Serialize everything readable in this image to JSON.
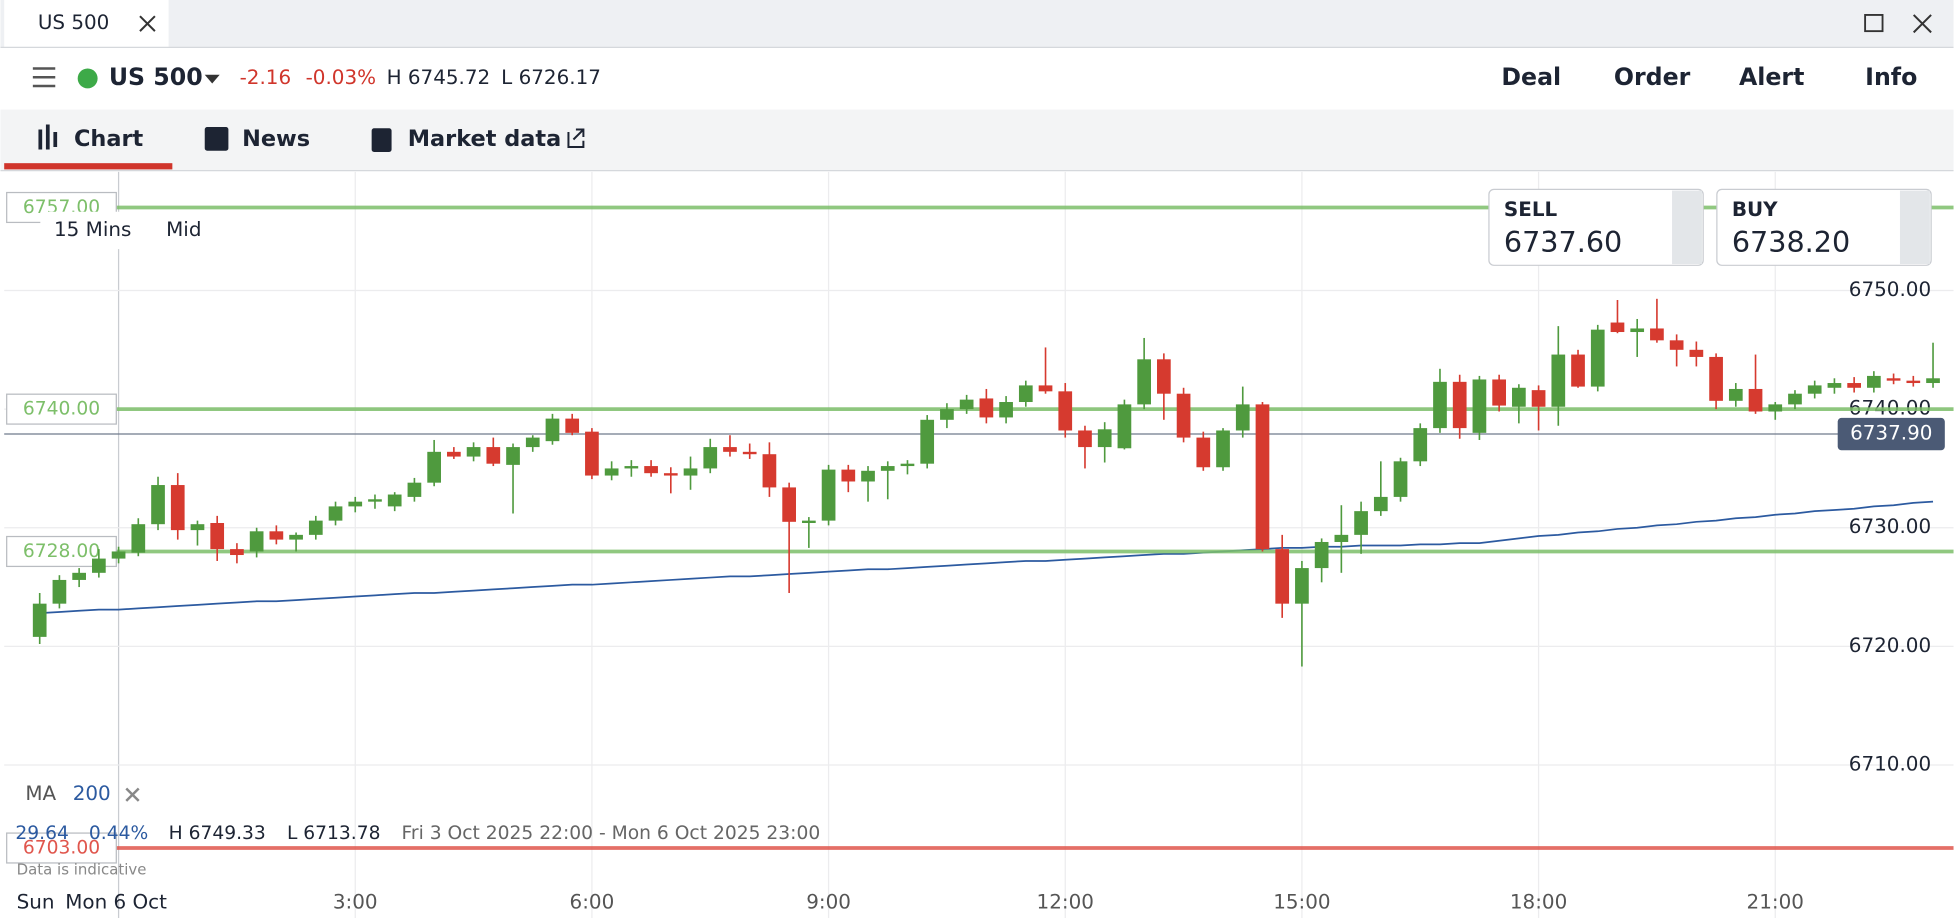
{
  "tab": {
    "title": "US 500"
  },
  "toolbar": {
    "instrument": "US 500",
    "change": "-2.16",
    "change_pct": "-0.03%",
    "high": "H 6745.72",
    "low": "L 6726.17",
    "actions": [
      "Deal",
      "Order",
      "Alert",
      "Info"
    ]
  },
  "nav": [
    "Chart",
    "News",
    "Market data"
  ],
  "chart_data": {
    "type": "candlestick",
    "interval": "15 Mins",
    "price_type": "Mid",
    "sell": {
      "label": "SELL",
      "price": "6737.60"
    },
    "buy": {
      "label": "BUY",
      "price": "6738.20"
    },
    "up_color": "#4f9a3e",
    "down_color": "#d63a2f",
    "xlim": [
      -1.45,
      23.26
    ],
    "ylim": [
      6697.1,
      6760
    ],
    "xticks": [
      {
        "value": 0,
        "label": "Mon 6 Oct"
      },
      {
        "value": 3,
        "label": "3:00"
      },
      {
        "value": 6,
        "label": "6:00"
      },
      {
        "value": 9,
        "label": "9:00"
      },
      {
        "value": 12,
        "label": "12:00"
      },
      {
        "value": 15,
        "label": "15:00"
      },
      {
        "value": 18,
        "label": "18:00"
      },
      {
        "value": 21,
        "label": "21:00"
      }
    ],
    "x_prefix": "Sun",
    "yticks": [
      {
        "value": 6710,
        "label": "6710.00"
      },
      {
        "value": 6720,
        "label": "6720.00"
      },
      {
        "value": 6730,
        "label": "6730.00"
      },
      {
        "value": 6740,
        "label": "6740.00"
      },
      {
        "value": 6750,
        "label": "6750.00"
      }
    ],
    "levels": [
      {
        "value": 6757,
        "label": "6757.00",
        "color": "#7dbf6a"
      },
      {
        "value": 6740,
        "label": "6740.00",
        "color": "#7dbf6a"
      },
      {
        "value": 6728,
        "label": "6728.00",
        "color": "#7dbf6a"
      },
      {
        "value": 6703,
        "label": "6703.00",
        "color": "#e0564d"
      }
    ],
    "current_price": {
      "value": 6737.9,
      "label": "6737.90"
    },
    "candles": [
      [
        -1,
        6720.8,
        6724.5,
        6720.2,
        6723.6
      ],
      [
        -0.75,
        6723.6,
        6726,
        6723.2,
        6725.6
      ],
      [
        -0.5,
        6725.6,
        6726.6,
        6725,
        6726.2
      ],
      [
        -0.25,
        6726.2,
        6728.2,
        6725.8,
        6727.4
      ],
      [
        0,
        6727.4,
        6728.4,
        6727,
        6728
      ],
      [
        0.25,
        6727.9,
        6730.8,
        6727.6,
        6730.3
      ],
      [
        0.5,
        6730.3,
        6734.3,
        6729.8,
        6733.6
      ],
      [
        0.75,
        6733.6,
        6734.6,
        6729,
        6729.8
      ],
      [
        1,
        6729.8,
        6730.6,
        6728.5,
        6730.3
      ],
      [
        1.25,
        6730.4,
        6731,
        6727.2,
        6728.2
      ],
      [
        1.5,
        6728.2,
        6728.7,
        6727,
        6727.7
      ],
      [
        1.75,
        6728,
        6730,
        6727.5,
        6729.7
      ],
      [
        2,
        6729.7,
        6730.2,
        6728.6,
        6729
      ],
      [
        2.25,
        6729,
        6729.6,
        6728,
        6729.4
      ],
      [
        2.5,
        6729.4,
        6731,
        6729,
        6730.6
      ],
      [
        2.75,
        6730.6,
        6732.2,
        6730.2,
        6731.8
      ],
      [
        3,
        6731.8,
        6732.6,
        6731.3,
        6732.2
      ],
      [
        3.25,
        6732.2,
        6732.8,
        6731.6,
        6732.4
      ],
      [
        3.5,
        6731.8,
        6733,
        6731.4,
        6732.8
      ],
      [
        3.75,
        6732.6,
        6734.2,
        6732.2,
        6733.8
      ],
      [
        4,
        6733.8,
        6737.4,
        6733.5,
        6736.4
      ],
      [
        4.25,
        6736.4,
        6736.8,
        6735.8,
        6736
      ],
      [
        4.5,
        6736,
        6737.2,
        6735.6,
        6736.8
      ],
      [
        4.75,
        6736.8,
        6737.6,
        6735.2,
        6735.4
      ],
      [
        5,
        6735.3,
        6737.1,
        6731.2,
        6736.8
      ],
      [
        5.25,
        6736.8,
        6737.8,
        6736.4,
        6737.6
      ],
      [
        5.5,
        6737.3,
        6739.6,
        6737,
        6739.2
      ],
      [
        5.75,
        6739.2,
        6739.6,
        6737.8,
        6738
      ],
      [
        6,
        6738.1,
        6738.4,
        6734.1,
        6734.4
      ],
      [
        6.25,
        6734.4,
        6735.6,
        6734,
        6735
      ],
      [
        6.5,
        6735,
        6735.7,
        6734.3,
        6735.2
      ],
      [
        6.75,
        6735.2,
        6735.7,
        6734.3,
        6734.6
      ],
      [
        7,
        6734.6,
        6735.1,
        6732.9,
        6734.4
      ],
      [
        7.25,
        6734.4,
        6736,
        6733.2,
        6735
      ],
      [
        7.5,
        6735,
        6737.5,
        6734.6,
        6736.8
      ],
      [
        7.75,
        6736.8,
        6737.8,
        6736,
        6736.4
      ],
      [
        8,
        6736.4,
        6737.1,
        6735.8,
        6736.2
      ],
      [
        8.25,
        6736.2,
        6737.2,
        6732.6,
        6733.4
      ],
      [
        8.5,
        6733.4,
        6733.8,
        6724.5,
        6730.5
      ],
      [
        8.75,
        6730.4,
        6730.9,
        6728.3,
        6730.6
      ],
      [
        9,
        6730.6,
        6735.3,
        6730.2,
        6734.9
      ],
      [
        9.25,
        6734.9,
        6735.3,
        6733,
        6733.9
      ],
      [
        9.5,
        6733.9,
        6735.2,
        6732.2,
        6734.8
      ],
      [
        9.75,
        6734.8,
        6735.6,
        6732.4,
        6735.2
      ],
      [
        10,
        6735.2,
        6735.7,
        6734.5,
        6735.4
      ],
      [
        10.25,
        6735.4,
        6739.5,
        6735,
        6739.1
      ],
      [
        10.5,
        6739.1,
        6740.5,
        6738.4,
        6740
      ],
      [
        10.75,
        6740,
        6741.2,
        6739.6,
        6740.8
      ],
      [
        11,
        6740.9,
        6741.7,
        6738.8,
        6739.3
      ],
      [
        11.25,
        6739.3,
        6741.1,
        6738.8,
        6740.6
      ],
      [
        11.5,
        6740.6,
        6742.4,
        6740.2,
        6742
      ],
      [
        11.75,
        6742,
        6745.2,
        6741.3,
        6741.5
      ],
      [
        12,
        6741.5,
        6742.2,
        6737.6,
        6738.2
      ],
      [
        12.25,
        6738.2,
        6738.6,
        6735,
        6736.8
      ],
      [
        12.5,
        6736.8,
        6738.9,
        6735.5,
        6738.3
      ],
      [
        12.75,
        6736.7,
        6740.8,
        6736.6,
        6740.4
      ],
      [
        13,
        6740.4,
        6746,
        6740,
        6744.2
      ],
      [
        13.25,
        6744.2,
        6744.7,
        6739.1,
        6741.3
      ],
      [
        13.5,
        6741.3,
        6741.8,
        6737.2,
        6737.6
      ],
      [
        13.75,
        6737.6,
        6738.1,
        6734.8,
        6735.1
      ],
      [
        14,
        6735.1,
        6738.4,
        6734.8,
        6738.2
      ],
      [
        14.25,
        6738.2,
        6741.9,
        6737.6,
        6740.4
      ],
      [
        14.5,
        6740.4,
        6740.6,
        6728,
        6728.2
      ],
      [
        14.75,
        6728.2,
        6729.4,
        6722.4,
        6723.6
      ],
      [
        15,
        6723.6,
        6727.2,
        6718.3,
        6726.6
      ],
      [
        15.25,
        6726.6,
        6729.1,
        6725.4,
        6728.8
      ],
      [
        15.5,
        6728.8,
        6731.9,
        6726.2,
        6729.4
      ],
      [
        15.75,
        6729.4,
        6732.2,
        6727.8,
        6731.4
      ],
      [
        16,
        6731.4,
        6735.6,
        6731,
        6732.6
      ],
      [
        16.25,
        6732.6,
        6735.9,
        6732.2,
        6735.6
      ],
      [
        16.5,
        6735.6,
        6738.8,
        6735.2,
        6738.4
      ],
      [
        16.75,
        6738.4,
        6743.4,
        6738,
        6742.3
      ],
      [
        17,
        6742.3,
        6742.9,
        6737.5,
        6738.4
      ],
      [
        17.25,
        6738,
        6742.8,
        6737.4,
        6742.5
      ],
      [
        17.5,
        6742.5,
        6742.9,
        6739.8,
        6740.3
      ],
      [
        17.75,
        6740.2,
        6742.1,
        6738.8,
        6741.8
      ],
      [
        18,
        6741.6,
        6742,
        6738.2,
        6740.2
      ],
      [
        18.25,
        6740.2,
        6747,
        6738.6,
        6744.6
      ],
      [
        18.5,
        6744.6,
        6745,
        6741.8,
        6741.9
      ],
      [
        18.75,
        6741.9,
        6747.1,
        6741.5,
        6746.7
      ],
      [
        19,
        6747.3,
        6749.2,
        6746.4,
        6746.5
      ],
      [
        19.25,
        6746.5,
        6747.6,
        6744.4,
        6746.8
      ],
      [
        19.5,
        6746.8,
        6749.3,
        6745.6,
        6745.8
      ],
      [
        19.75,
        6745.8,
        6746.3,
        6743.6,
        6745
      ],
      [
        20,
        6745,
        6745.7,
        6743.6,
        6744.4
      ],
      [
        20.25,
        6744.4,
        6744.7,
        6740,
        6740.7
      ],
      [
        20.5,
        6740.7,
        6742.2,
        6740.2,
        6741.7
      ],
      [
        20.75,
        6741.7,
        6744.6,
        6739.6,
        6739.8
      ],
      [
        21,
        6739.8,
        6740.6,
        6739.1,
        6740.4
      ],
      [
        21.25,
        6740.4,
        6741.6,
        6740,
        6741.3
      ],
      [
        21.5,
        6741.3,
        6742.4,
        6740.9,
        6742
      ],
      [
        21.75,
        6741.8,
        6742.6,
        6741.3,
        6742.2
      ],
      [
        22,
        6742.2,
        6742.7,
        6741.4,
        6741.8
      ],
      [
        22.25,
        6741.8,
        6743.2,
        6741.4,
        6742.8
      ],
      [
        22.5,
        6742.6,
        6743,
        6742.1,
        6742.4
      ],
      [
        22.75,
        6742.4,
        6742.8,
        6741.9,
        6742.2
      ],
      [
        23,
        6742.2,
        6745.6,
        6741.8,
        6742.6
      ]
    ],
    "ma": {
      "name": "MA",
      "period": 200,
      "color": "#2c5aa0",
      "values": [
        6722.8,
        6722.9,
        6723.0,
        6723.1,
        6723.1,
        6723.2,
        6723.3,
        6723.4,
        6723.5,
        6723.6,
        6723.7,
        6723.8,
        6723.8,
        6723.9,
        6724.0,
        6724.1,
        6724.2,
        6724.3,
        6724.4,
        6724.5,
        6724.5,
        6724.6,
        6724.7,
        6724.8,
        6724.9,
        6725.0,
        6725.1,
        6725.2,
        6725.2,
        6725.3,
        6725.4,
        6725.5,
        6725.6,
        6725.7,
        6725.8,
        6725.9,
        6725.9,
        6726.0,
        6726.1,
        6726.2,
        6726.3,
        6726.4,
        6726.5,
        6726.5,
        6726.6,
        6726.7,
        6726.8,
        6726.9,
        6727.0,
        6727.1,
        6727.2,
        6727.2,
        6727.3,
        6727.4,
        6727.5,
        6727.6,
        6727.7,
        6727.8,
        6727.8,
        6727.9,
        6728.0,
        6728.1,
        6728.2,
        6728.3,
        6728.3,
        6728.4,
        6728.4,
        6728.5,
        6728.5,
        6728.5,
        6728.6,
        6728.6,
        6728.7,
        6728.7,
        6728.9,
        6729.1,
        6729.3,
        6729.4,
        6729.6,
        6729.7,
        6729.9,
        6730.0,
        6730.2,
        6730.3,
        6730.5,
        6730.6,
        6730.8,
        6730.9,
        6731.1,
        6731.2,
        6731.4,
        6731.5,
        6731.6,
        6731.8,
        6731.9,
        6732.1,
        6732.2
      ]
    },
    "stats": {
      "change": "29.64",
      "change_pct": "0.44%",
      "high": "H 6749.33",
      "low": "L 6713.78",
      "range": "Fri 3 Oct 2025 22:00 - Mon 6 Oct 2025 23:00",
      "note": "Data is indicative"
    }
  }
}
